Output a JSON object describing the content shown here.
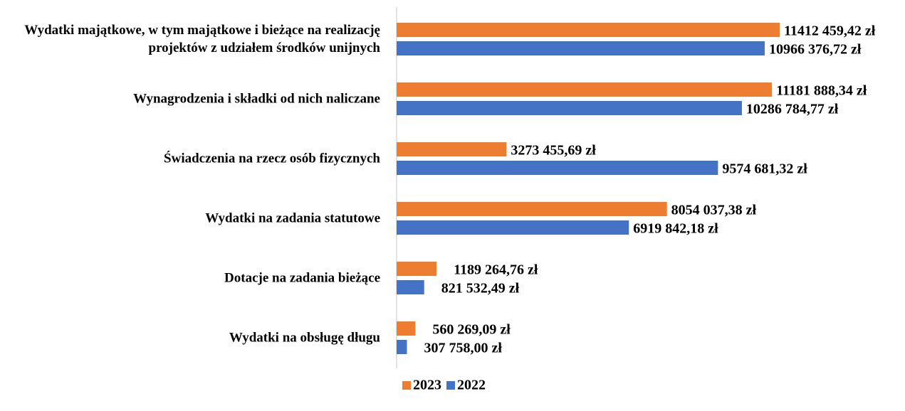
{
  "chart_data": {
    "type": "bar",
    "orientation": "horizontal",
    "categories": [
      "Wydatki majątkowe, w tym majątkowe i bieżące na realizację projektów z udziałem środków unijnych",
      "Wynagrodzenia i składki od nich naliczane",
      "Świadczenia na rzecz osób fizycznych",
      "Wydatki na zadania statutowe",
      "Dotacje na zadania bieżące",
      "Wydatki na obsługę długu"
    ],
    "series": [
      {
        "name": "2023",
        "color": "#ED7D31",
        "values": [
          11412459.42,
          11181888.34,
          3273455.69,
          8054037.38,
          1189264.76,
          560269.09
        ],
        "value_labels": [
          "11412 459,42 zł",
          "11181 888,34 zł",
          "3273 455,69 zł",
          "8054 037,38 zł",
          "1189 264,76 zł",
          "560 269,09 zł"
        ]
      },
      {
        "name": "2022",
        "color": "#4472C4",
        "values": [
          10966376.72,
          10286784.77,
          9574681.32,
          6919842.18,
          821532.49,
          307758.0
        ],
        "value_labels": [
          "10966 376,72 zł",
          "10286 784,77 zł",
          "9574 681,32 zł",
          "6919 842,18 zł",
          "821 532,49 zł",
          "307 758,00 zł"
        ]
      }
    ],
    "legend": "bottom"
  }
}
